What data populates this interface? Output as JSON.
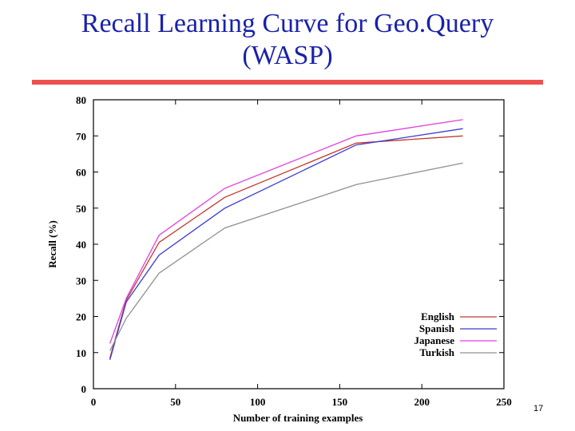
{
  "slide": {
    "title_line1": "Recall Learning Curve for Geo.Query",
    "title_line2": "(WASP)",
    "page_number": "17",
    "title_color": "#1a22a8",
    "rule_color": "#ee5050"
  },
  "chart_data": {
    "type": "line",
    "title": "",
    "xlabel": "Number of training examples",
    "ylabel": "Recall (%)",
    "xlim": [
      0,
      250
    ],
    "ylim": [
      0,
      80
    ],
    "xticks": [
      0,
      50,
      100,
      150,
      200,
      250
    ],
    "yticks": [
      0,
      10,
      20,
      30,
      40,
      50,
      60,
      70,
      80
    ],
    "grid": false,
    "legend_position": "bottom-right",
    "x": [
      10,
      20,
      40,
      80,
      160,
      225
    ],
    "series": [
      {
        "name": "English",
        "color": "#c0392b",
        "values": [
          8.5,
          24.5,
          40.5,
          53.0,
          68.0,
          70.0
        ]
      },
      {
        "name": "Spanish",
        "color": "#3a3ad0",
        "values": [
          8.0,
          24.0,
          37.0,
          50.0,
          67.5,
          72.0
        ]
      },
      {
        "name": "Japanese",
        "color": "#e040e0",
        "values": [
          12.5,
          25.0,
          42.5,
          55.5,
          70.0,
          74.5
        ]
      },
      {
        "name": "Turkish",
        "color": "#909090",
        "values": [
          10.5,
          19.5,
          32.0,
          44.5,
          56.5,
          62.5
        ]
      }
    ]
  }
}
